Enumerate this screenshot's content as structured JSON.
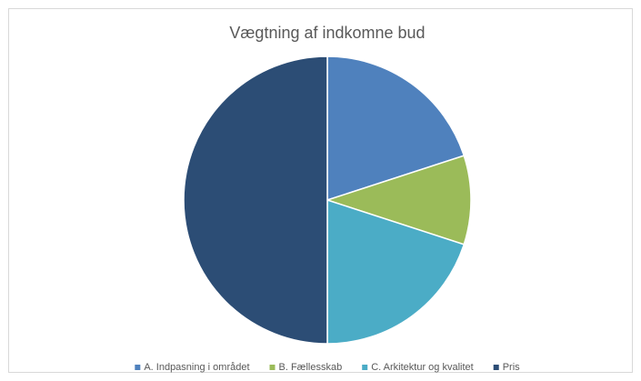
{
  "chart_data": {
    "type": "pie",
    "title": "Vægtning af indkomne bud",
    "categories": [
      "A. Indpasning i området",
      "B. Fællesskab",
      "C. Arkitektur og kvalitet",
      "Pris"
    ],
    "values": [
      20,
      10,
      20,
      50
    ],
    "colors": [
      "#4f81bd",
      "#9bbb59",
      "#4bacc6",
      "#2c4d75"
    ],
    "legend": "bottom"
  }
}
